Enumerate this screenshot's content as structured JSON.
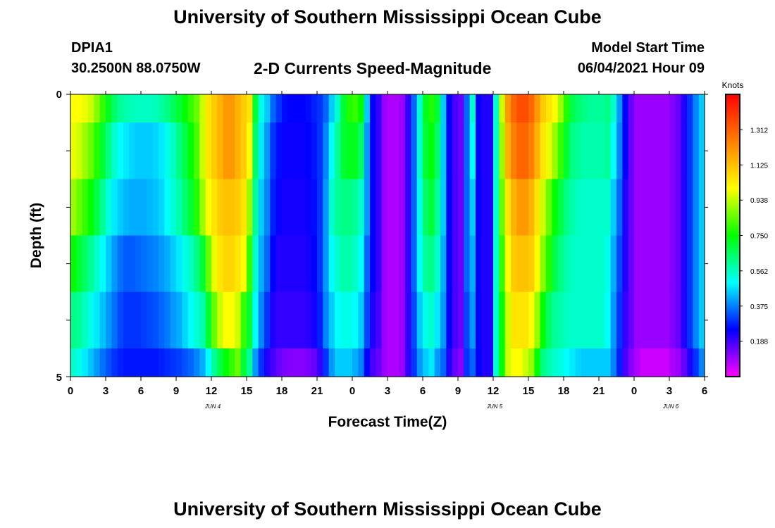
{
  "header": {
    "title": "University of Southern Mississippi Ocean Cube",
    "station_name": "DPIA1",
    "station_coords": "30.2500N  88.0750W",
    "plot_title": "2-D Currents Speed-Magnitude",
    "model_start_label": "Model Start Time",
    "model_start_value": "06/04/2021 Hour 09"
  },
  "footer": {
    "title": "University of Southern Mississippi Ocean Cube"
  },
  "chart_data": {
    "type": "heatmap",
    "title": "2-D Currents Speed-Magnitude",
    "xlabel": "Forecast Time(Z)",
    "ylabel": "Depth (ft)",
    "x_tick_labels": [
      "0",
      "3",
      "6",
      "9",
      "12",
      "15",
      "18",
      "21",
      "0",
      "3",
      "6",
      "9",
      "12",
      "15",
      "18",
      "21",
      "0",
      "3",
      "6"
    ],
    "date_labels": [
      {
        "label": "JUN 4",
        "hour": 12
      },
      {
        "label": "JUN 5",
        "hour": 36
      },
      {
        "label": "JUN 6",
        "hour": 51
      }
    ],
    "x_range_hours": [
      0,
      54
    ],
    "y_tick_labels": [
      "0",
      "5"
    ],
    "ylim": [
      0,
      5
    ],
    "colorbar": {
      "title": "Knots",
      "tick_labels": [
        "1.312",
        "1.125",
        "0.938",
        "0.750",
        "0.562",
        "0.375",
        "0.188"
      ],
      "min": 0.0,
      "max": 1.5,
      "colors": [
        "#ff00ff",
        "#0000ff",
        "#00ffff",
        "#00ff00",
        "#ffff00",
        "#ff8000",
        "#ff0000"
      ]
    },
    "grid": false,
    "column_hours": [
      0,
      0.5,
      1,
      1.5,
      2,
      2.5,
      3,
      3.5,
      4,
      4.5,
      5,
      5.5,
      6,
      6.5,
      7,
      7.5,
      8,
      8.5,
      9,
      9.5,
      10,
      10.5,
      11,
      11.5,
      12,
      12.5,
      13,
      13.5,
      14,
      14.5,
      15,
      15.5,
      16,
      16.5,
      17,
      17.5,
      18,
      18.5,
      19,
      19.5,
      20,
      20.5,
      21,
      21.5,
      22,
      22.5,
      23,
      23.5,
      24,
      24.5,
      25,
      25.5,
      26,
      26.5,
      27,
      27.5,
      28,
      28.5,
      29,
      29.5,
      30,
      30.5,
      31,
      31.5,
      32,
      32.5,
      33,
      33.5,
      34,
      34.5,
      35,
      35.5,
      36,
      36.5,
      37,
      37.5,
      38,
      38.5,
      39,
      39.5,
      40,
      40.5,
      41,
      41.5,
      42,
      42.5,
      43,
      43.5,
      44,
      44.5,
      45,
      45.5,
      46,
      46.5,
      47,
      47.5,
      48,
      48.5,
      49,
      49.5,
      50,
      50.5,
      51,
      51.5,
      52,
      52.5,
      53,
      53.5
    ],
    "layer_depths_ft": [
      0,
      0.5,
      1.5,
      2.5,
      3.5,
      4.5
    ],
    "speed_knots": [
      [
        1.0,
        1.0,
        0.98,
        0.95,
        0.88,
        0.8,
        0.72,
        0.65,
        0.6,
        0.58,
        0.57,
        0.56,
        0.56,
        0.56,
        0.57,
        0.59,
        0.62,
        0.66,
        0.7,
        0.75,
        0.8,
        0.85,
        0.95,
        1.05,
        1.1,
        1.15,
        1.2,
        1.2,
        1.15,
        1.1,
        1.05,
        0.7,
        0.52,
        0.45,
        0.35,
        0.3,
        0.26,
        0.25,
        0.25,
        0.25,
        0.26,
        0.28,
        0.3,
        0.35,
        0.45,
        0.55,
        0.7,
        0.78,
        0.8,
        0.75,
        0.45,
        0.25,
        0.2,
        0.1,
        0.08,
        0.08,
        0.1,
        0.2,
        0.35,
        0.55,
        0.72,
        0.78,
        0.7,
        0.45,
        0.25,
        0.18,
        0.15,
        0.35,
        0.55,
        0.25,
        0.22,
        0.22,
        0.55,
        0.95,
        1.2,
        1.3,
        1.35,
        1.35,
        1.3,
        1.2,
        1.1,
        1.05,
        1.0,
        0.9,
        0.78,
        0.68,
        0.64,
        0.62,
        0.6,
        0.6,
        0.6,
        0.62,
        0.55,
        0.4,
        0.25,
        0.15,
        0.1,
        0.1,
        0.1,
        0.1,
        0.1,
        0.1,
        0.12,
        0.15,
        0.22,
        0.3,
        0.38,
        0.45
      ],
      [
        0.98,
        0.95,
        0.9,
        0.85,
        0.78,
        0.7,
        0.62,
        0.55,
        0.5,
        0.48,
        0.46,
        0.45,
        0.45,
        0.45,
        0.46,
        0.48,
        0.52,
        0.56,
        0.62,
        0.68,
        0.75,
        0.82,
        0.95,
        1.05,
        1.1,
        1.15,
        1.2,
        1.2,
        1.15,
        1.1,
        1.0,
        0.65,
        0.48,
        0.4,
        0.3,
        0.26,
        0.24,
        0.24,
        0.24,
        0.24,
        0.25,
        0.27,
        0.3,
        0.38,
        0.5,
        0.6,
        0.7,
        0.72,
        0.72,
        0.65,
        0.4,
        0.25,
        0.2,
        0.1,
        0.08,
        0.08,
        0.1,
        0.2,
        0.35,
        0.55,
        0.7,
        0.75,
        0.65,
        0.45,
        0.25,
        0.18,
        0.15,
        0.35,
        0.5,
        0.25,
        0.22,
        0.22,
        0.55,
        0.9,
        1.15,
        1.25,
        1.3,
        1.3,
        1.25,
        1.15,
        1.05,
        0.98,
        0.9,
        0.8,
        0.7,
        0.62,
        0.6,
        0.58,
        0.58,
        0.58,
        0.58,
        0.6,
        0.5,
        0.38,
        0.25,
        0.15,
        0.1,
        0.1,
        0.1,
        0.1,
        0.1,
        0.1,
        0.12,
        0.15,
        0.22,
        0.3,
        0.38,
        0.45
      ],
      [
        0.9,
        0.85,
        0.8,
        0.75,
        0.68,
        0.6,
        0.53,
        0.48,
        0.45,
        0.43,
        0.42,
        0.42,
        0.42,
        0.43,
        0.44,
        0.46,
        0.5,
        0.54,
        0.58,
        0.64,
        0.7,
        0.78,
        0.9,
        1.0,
        1.05,
        1.1,
        1.12,
        1.12,
        1.1,
        1.05,
        0.9,
        0.6,
        0.45,
        0.38,
        0.28,
        0.24,
        0.23,
        0.23,
        0.23,
        0.23,
        0.24,
        0.26,
        0.3,
        0.4,
        0.55,
        0.6,
        0.62,
        0.62,
        0.6,
        0.55,
        0.4,
        0.25,
        0.2,
        0.1,
        0.08,
        0.08,
        0.1,
        0.2,
        0.35,
        0.52,
        0.65,
        0.7,
        0.6,
        0.45,
        0.25,
        0.18,
        0.15,
        0.35,
        0.45,
        0.25,
        0.22,
        0.22,
        0.55,
        0.85,
        1.05,
        1.15,
        1.2,
        1.2,
        1.15,
        1.05,
        0.95,
        0.85,
        0.75,
        0.68,
        0.62,
        0.58,
        0.56,
        0.55,
        0.55,
        0.55,
        0.55,
        0.55,
        0.45,
        0.35,
        0.22,
        0.15,
        0.1,
        0.1,
        0.1,
        0.1,
        0.1,
        0.1,
        0.12,
        0.15,
        0.22,
        0.3,
        0.38,
        0.45
      ],
      [
        0.75,
        0.7,
        0.65,
        0.6,
        0.55,
        0.5,
        0.45,
        0.4,
        0.36,
        0.34,
        0.34,
        0.35,
        0.36,
        0.37,
        0.38,
        0.4,
        0.42,
        0.45,
        0.48,
        0.52,
        0.56,
        0.62,
        0.7,
        0.85,
        0.98,
        1.05,
        1.08,
        1.08,
        1.05,
        1.0,
        0.8,
        0.55,
        0.42,
        0.35,
        0.25,
        0.22,
        0.22,
        0.22,
        0.22,
        0.22,
        0.23,
        0.25,
        0.3,
        0.4,
        0.5,
        0.55,
        0.58,
        0.58,
        0.56,
        0.5,
        0.35,
        0.25,
        0.2,
        0.1,
        0.08,
        0.08,
        0.1,
        0.2,
        0.35,
        0.5,
        0.6,
        0.62,
        0.55,
        0.42,
        0.25,
        0.18,
        0.15,
        0.35,
        0.42,
        0.25,
        0.22,
        0.22,
        0.55,
        0.8,
        1.0,
        1.1,
        1.12,
        1.12,
        1.1,
        1.0,
        0.88,
        0.78,
        0.68,
        0.62,
        0.58,
        0.56,
        0.55,
        0.55,
        0.55,
        0.55,
        0.55,
        0.52,
        0.42,
        0.32,
        0.22,
        0.15,
        0.1,
        0.1,
        0.1,
        0.1,
        0.1,
        0.1,
        0.12,
        0.15,
        0.22,
        0.3,
        0.38,
        0.45
      ],
      [
        0.62,
        0.6,
        0.56,
        0.52,
        0.48,
        0.44,
        0.4,
        0.36,
        0.32,
        0.3,
        0.3,
        0.3,
        0.31,
        0.32,
        0.33,
        0.35,
        0.37,
        0.4,
        0.42,
        0.46,
        0.5,
        0.54,
        0.58,
        0.7,
        0.85,
        0.95,
        1.0,
        1.0,
        0.95,
        0.8,
        0.7,
        0.5,
        0.38,
        0.3,
        0.22,
        0.2,
        0.2,
        0.2,
        0.2,
        0.2,
        0.21,
        0.23,
        0.28,
        0.38,
        0.45,
        0.5,
        0.52,
        0.52,
        0.5,
        0.45,
        0.32,
        0.22,
        0.18,
        0.1,
        0.08,
        0.08,
        0.1,
        0.2,
        0.32,
        0.45,
        0.52,
        0.55,
        0.48,
        0.4,
        0.25,
        0.18,
        0.15,
        0.32,
        0.4,
        0.25,
        0.22,
        0.22,
        0.55,
        0.75,
        0.95,
        1.05,
        1.05,
        1.05,
        1.0,
        0.9,
        0.75,
        0.65,
        0.6,
        0.58,
        0.56,
        0.55,
        0.55,
        0.55,
        0.55,
        0.55,
        0.55,
        0.5,
        0.4,
        0.3,
        0.2,
        0.15,
        0.1,
        0.1,
        0.1,
        0.1,
        0.1,
        0.1,
        0.12,
        0.15,
        0.22,
        0.3,
        0.38,
        0.45
      ],
      [
        0.55,
        0.52,
        0.48,
        0.44,
        0.4,
        0.36,
        0.33,
        0.3,
        0.28,
        0.27,
        0.27,
        0.27,
        0.27,
        0.27,
        0.27,
        0.28,
        0.29,
        0.3,
        0.31,
        0.33,
        0.35,
        0.38,
        0.42,
        0.5,
        0.6,
        0.68,
        0.75,
        0.8,
        0.85,
        0.7,
        0.6,
        0.4,
        0.3,
        0.22,
        0.18,
        0.15,
        0.13,
        0.12,
        0.12,
        0.12,
        0.13,
        0.15,
        0.2,
        0.3,
        0.4,
        0.45,
        0.45,
        0.45,
        0.42,
        0.38,
        0.25,
        0.18,
        0.15,
        0.1,
        0.08,
        0.08,
        0.1,
        0.2,
        0.3,
        0.4,
        0.45,
        0.48,
        0.4,
        0.35,
        0.22,
        0.15,
        0.12,
        0.3,
        0.35,
        0.25,
        0.22,
        0.22,
        0.55,
        0.75,
        0.95,
        1.0,
        1.0,
        0.95,
        0.9,
        0.75,
        0.62,
        0.58,
        0.55,
        0.53,
        0.5,
        0.48,
        0.46,
        0.45,
        0.45,
        0.45,
        0.45,
        0.45,
        0.38,
        0.28,
        0.18,
        0.12,
        0.08,
        0.05,
        0.05,
        0.05,
        0.05,
        0.05,
        0.08,
        0.1,
        0.15,
        0.22,
        0.3,
        0.38
      ]
    ]
  }
}
